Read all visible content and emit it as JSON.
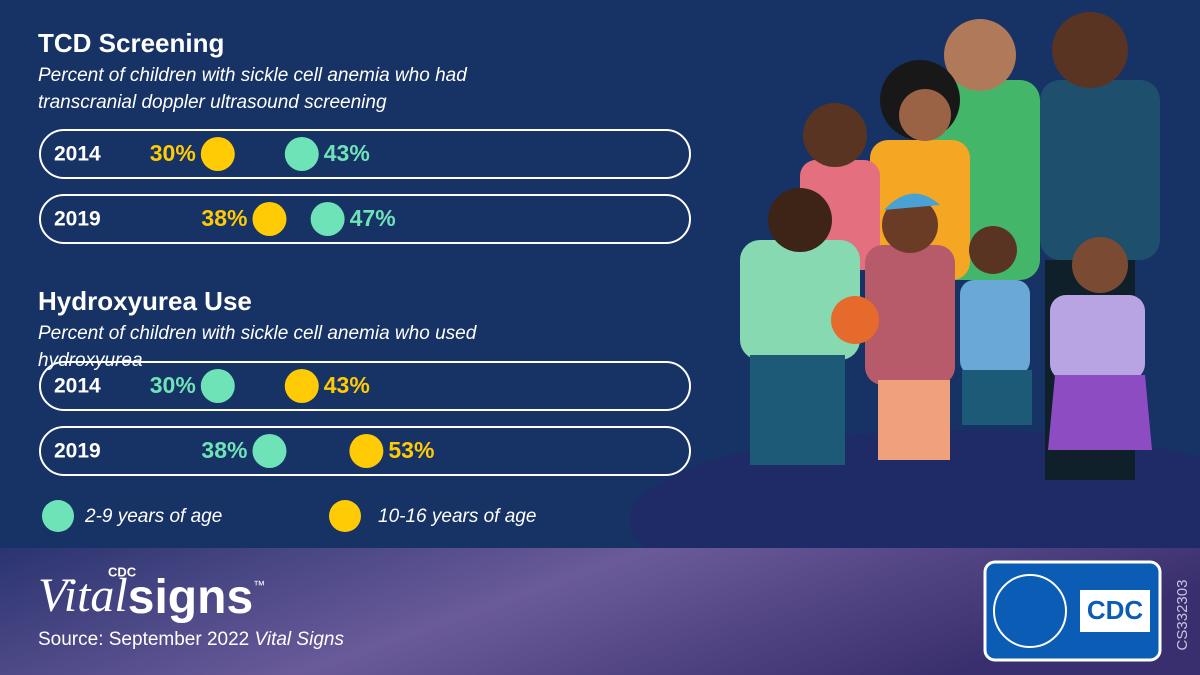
{
  "chart_data": [
    {
      "type": "dot",
      "title": "TCD Screening",
      "subtitle": "Percent of children with sickle cell anemia who had transcranial doppler ultrasound screening",
      "categories": [
        "2014",
        "2019"
      ],
      "series": [
        {
          "name": "2-9 years of age",
          "color": "#6fe3b8",
          "values": [
            43,
            47
          ],
          "value_labels": [
            "43%",
            "47%"
          ]
        },
        {
          "name": "10-16 years of age",
          "color": "#ffcb05",
          "values": [
            30,
            38
          ],
          "value_labels": [
            "30%",
            "38%"
          ]
        }
      ]
    },
    {
      "type": "dot",
      "title": "Hydroxyurea Use",
      "subtitle": "Percent of children with sickle cell anemia who used hydroxyurea",
      "categories": [
        "2014",
        "2019"
      ],
      "series": [
        {
          "color": "#6fe3b8",
          "values": [
            30,
            38
          ],
          "value_labels": [
            "30%",
            "38%"
          ]
        },
        {
          "color": "#ffcb05",
          "values": [
            43,
            53
          ],
          "value_labels": [
            "43%",
            "53%"
          ]
        }
      ]
    }
  ],
  "footer": {
    "logo_small": "CDC",
    "logo_vital": "Vital",
    "logo_signs": "signs",
    "logo_tm": "™",
    "source": "Source: September 2022 ",
    "source_italic": "Vital Signs",
    "agency": "CDC",
    "code": "CS332303"
  }
}
